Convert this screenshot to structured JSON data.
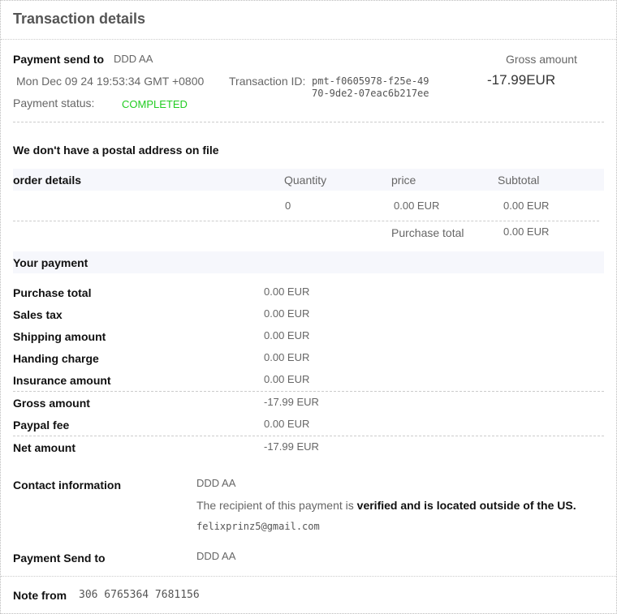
{
  "header": {
    "title": "Transaction details"
  },
  "summary": {
    "payment_send_to_label": "Payment send to",
    "payment_send_to_value": "DDD AA",
    "date": "Mon Dec 09 24 19:53:34 GMT +0800",
    "transaction_id_label": "Transaction ID:",
    "transaction_id_line1": "pmt-f0605978-f25e-49",
    "transaction_id_line2": "70-9de2-07eac6b217ee",
    "status_label": "Payment status:",
    "status_value": "COMPLETED",
    "status_color": "#22cc22",
    "gross_label": "Gross amount",
    "gross_value": "-17.99EUR"
  },
  "postal": "We don't have a postal address on file",
  "order": {
    "headers": [
      "order details",
      "Quantity",
      "price",
      "Subtotal"
    ],
    "row": {
      "quantity": "0",
      "price": "0.00 EUR",
      "subtotal": "0.00 EUR"
    },
    "purchase_total_label": "Purchase total",
    "purchase_total_value": "0.00 EUR"
  },
  "payment": {
    "title": "Your payment",
    "rows": [
      {
        "label": "Purchase total",
        "value": "0.00 EUR"
      },
      {
        "label": "Sales tax",
        "value": "0.00 EUR"
      },
      {
        "label": "Shipping amount",
        "value": "0.00 EUR"
      },
      {
        "label": "Handing charge",
        "value": "0.00 EUR"
      },
      {
        "label": "Insurance amount",
        "value": "0.00 EUR"
      },
      {
        "label": "Gross amount",
        "value": "-17.99 EUR"
      },
      {
        "label": "Paypal fee",
        "value": "0.00 EUR"
      },
      {
        "label": "Net amount",
        "value": "-17.99 EUR"
      }
    ]
  },
  "contact": {
    "label": "Contact information",
    "name": "DDD AA",
    "verified_prefix": "The recipient of this payment is ",
    "verified_bold": "verified and is located outside of the US.",
    "email": "felixprinz5@gmail.com"
  },
  "send_to": {
    "label": "Payment Send to",
    "value": "DDD AA"
  },
  "note": {
    "label": "Note from",
    "value": "306 6765364 7681156"
  }
}
